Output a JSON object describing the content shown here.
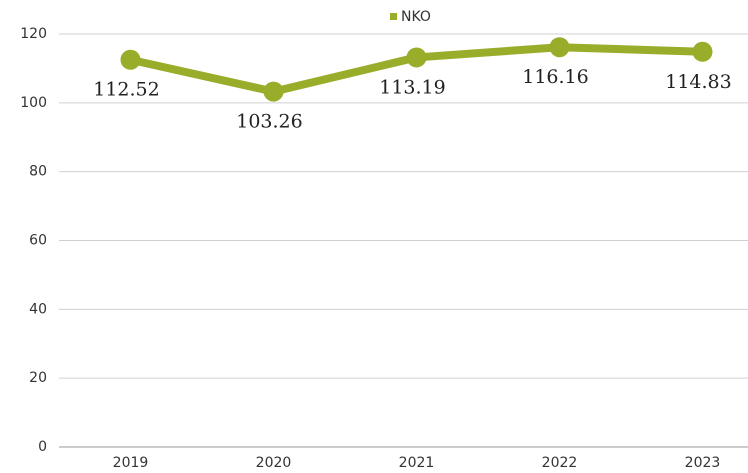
{
  "chart_data": {
    "type": "line",
    "categories": [
      "2019",
      "2020",
      "2021",
      "2022",
      "2023"
    ],
    "series": [
      {
        "name": "NKO",
        "color": "#9aad2b",
        "values": [
          112.52,
          103.26,
          113.19,
          116.16,
          114.83
        ]
      }
    ],
    "ylim": [
      0,
      120
    ],
    "yticks": [
      0,
      20,
      40,
      60,
      80,
      100,
      120
    ],
    "grid": true,
    "legend": "top"
  }
}
